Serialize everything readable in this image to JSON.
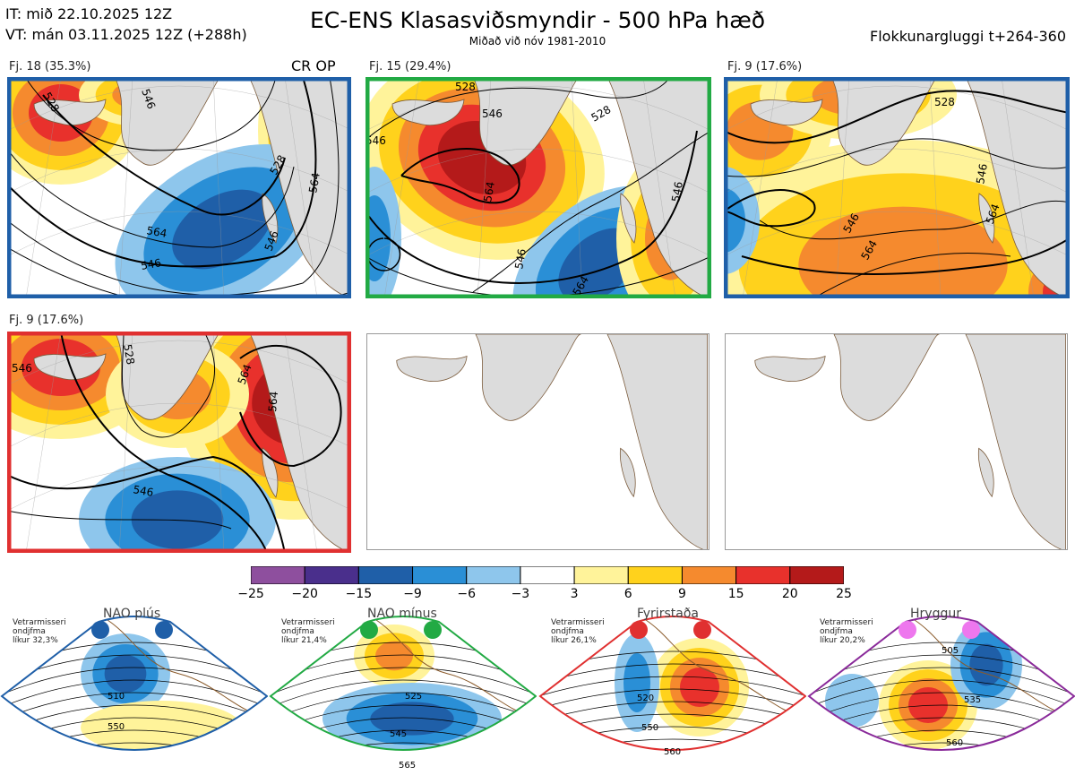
{
  "header": {
    "it": "IT: mið 22.10.2025 12Z",
    "vt": "VT: mán 03.11.2025 12Z  (+288h)",
    "title": "EC-ENS Klasasviðsmyndir - 500 hPa hæð",
    "subtitle": "Miðað við nóv 1981-2010",
    "window": "Flokkunargluggi t+264-360"
  },
  "panels": [
    {
      "label": "Fj. 18 (35.3%)",
      "extra": "CR OP",
      "frame_color": "#1f5fa8",
      "contours": [
        "528",
        "546",
        "564",
        "528",
        "546",
        "546",
        "564"
      ]
    },
    {
      "label": "Fj. 15 (29.4%)",
      "frame_color": "#22aa44",
      "contours": [
        "528",
        "546",
        "528",
        "564",
        "546",
        "546",
        "546",
        "564"
      ]
    },
    {
      "label": "Fj. 9 (17.6%)",
      "frame_color": "#1f5fa8",
      "contours": [
        "528",
        "546",
        "546",
        "564",
        "564"
      ]
    },
    {
      "label": "Fj. 9 (17.6%)",
      "frame_color": "#e03030",
      "contours": [
        "528",
        "546",
        "564",
        "546",
        "564"
      ]
    }
  ],
  "colorbar": {
    "ticks": [
      "−25",
      "−20",
      "−15",
      "−9",
      "−6",
      "−3",
      "3",
      "6",
      "9",
      "15",
      "20",
      "25"
    ],
    "colors": [
      "#8e4f9e",
      "#4a2f8c",
      "#1f5fa8",
      "#2a8fd6",
      "#8ec6ec",
      "#ffffff",
      "#fff39a",
      "#ffd21c",
      "#f58a2e",
      "#e8312c",
      "#b41a1a"
    ]
  },
  "regimes": [
    {
      "title": "NAO plús",
      "note1": "Vetrarmisseri",
      "note2": "ondjfma",
      "note3": "líkur 32,3%",
      "color": "#1f5fa8",
      "dot_color": "#1f5fa8",
      "labels": [
        "510",
        "550"
      ]
    },
    {
      "title": "NAO mínus",
      "note1": "Vetrarmisseri",
      "note2": "ondjfma",
      "note3": "líkur 21,4%",
      "color": "#22aa44",
      "dot_color": "#22aa44",
      "labels": [
        "525",
        "545",
        "565"
      ]
    },
    {
      "title": "Fyrirstaða",
      "note1": "Vetrarmisseri",
      "note2": "ondjfma",
      "note3": "líkur 26,1%",
      "color": "#e03030",
      "dot_color": "#e03030",
      "labels": [
        "520",
        "550",
        "560"
      ]
    },
    {
      "title": "Hryggur",
      "note1": "Vetrarmisseri",
      "note2": "ondjfma",
      "note3": "líkur 20,2%",
      "color": "#8a2a9a",
      "dot_color": "#ee77ee",
      "labels": [
        "505",
        "535",
        "560"
      ]
    }
  ]
}
